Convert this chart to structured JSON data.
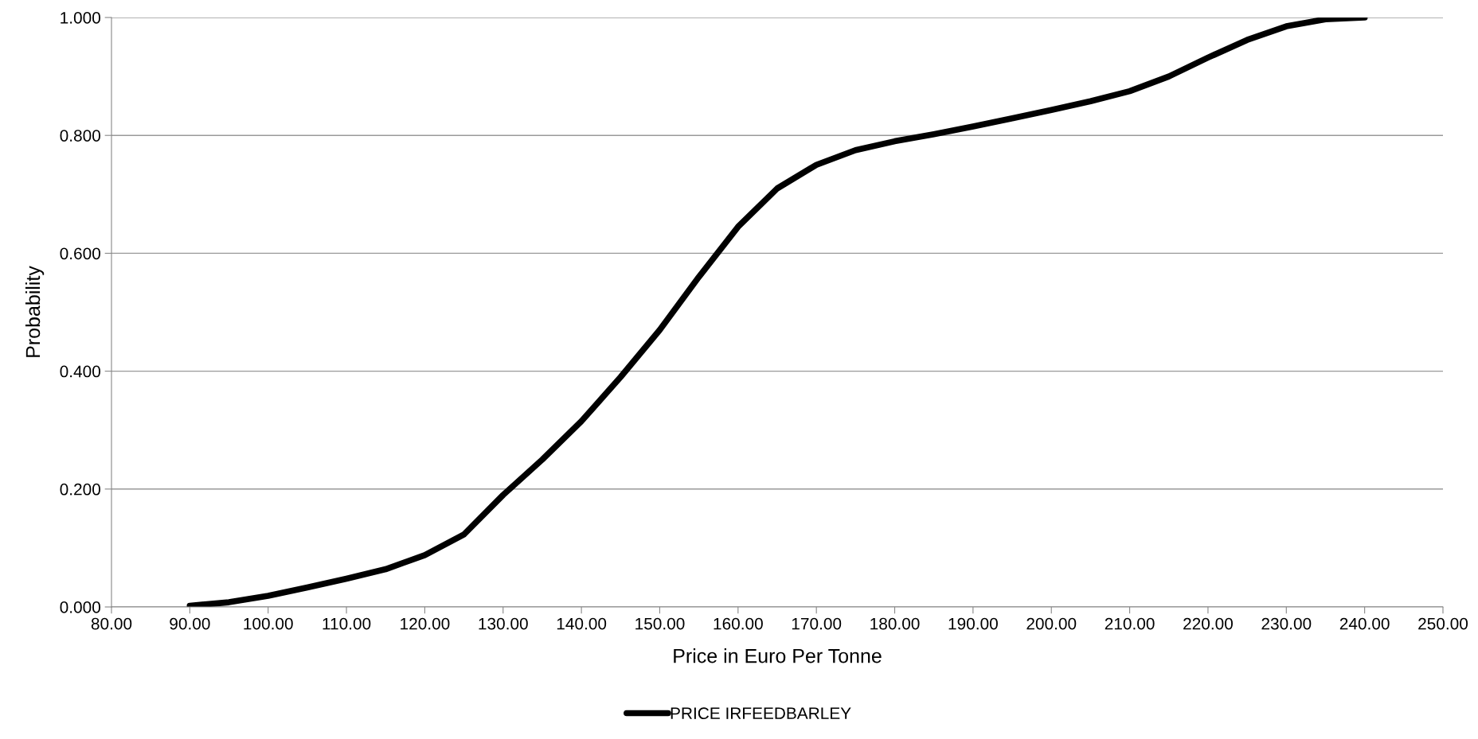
{
  "chart_data": {
    "type": "line",
    "xlabel": "Price in Euro Per Tonne",
    "ylabel": "Probability",
    "xlim": [
      80,
      250
    ],
    "xticks": [
      {
        "value": 80,
        "label": "80.00"
      },
      {
        "value": 90,
        "label": "90.00"
      },
      {
        "value": 100,
        "label": "100.00"
      },
      {
        "value": 110,
        "label": "110.00"
      },
      {
        "value": 120,
        "label": "120.00"
      },
      {
        "value": 130,
        "label": "130.00"
      },
      {
        "value": 140,
        "label": "140.00"
      },
      {
        "value": 150,
        "label": "150.00"
      },
      {
        "value": 160,
        "label": "160.00"
      },
      {
        "value": 170,
        "label": "170.00"
      },
      {
        "value": 180,
        "label": "180.00"
      },
      {
        "value": 190,
        "label": "190.00"
      },
      {
        "value": 200,
        "label": "200.00"
      },
      {
        "value": 210,
        "label": "210.00"
      },
      {
        "value": 220,
        "label": "220.00"
      },
      {
        "value": 230,
        "label": "230.00"
      },
      {
        "value": 240,
        "label": "240.00"
      },
      {
        "value": 250,
        "label": "250.00"
      }
    ],
    "ylim": [
      0,
      1
    ],
    "yticks": [
      {
        "value": 0,
        "label": "0.000"
      },
      {
        "value": 0.2,
        "label": "0.200"
      },
      {
        "value": 0.4,
        "label": "0.400"
      },
      {
        "value": 0.6,
        "label": "0.600"
      },
      {
        "value": 0.8,
        "label": "0.800"
      },
      {
        "value": 1,
        "label": "1.000"
      }
    ],
    "grid": "y",
    "legend": "bottom",
    "marker": "none",
    "line_style": "solid",
    "series": [
      {
        "name": "PRICE IRFEEDBARLEY",
        "color": "#000000",
        "x": [
          90,
          95,
          100,
          105,
          110,
          115,
          120,
          125,
          130,
          135,
          140,
          145,
          150,
          155,
          160,
          165,
          170,
          175,
          180,
          185,
          190,
          195,
          200,
          205,
          210,
          215,
          220,
          225,
          230,
          235,
          240
        ],
        "values": [
          0.002,
          0.008,
          0.019,
          0.033,
          0.048,
          0.064,
          0.088,
          0.123,
          0.19,
          0.25,
          0.315,
          0.39,
          0.47,
          0.56,
          0.645,
          0.71,
          0.75,
          0.775,
          0.79,
          0.802,
          0.815,
          0.829,
          0.843,
          0.858,
          0.875,
          0.9,
          0.932,
          0.962,
          0.985,
          0.997,
          1.0
        ]
      }
    ]
  }
}
